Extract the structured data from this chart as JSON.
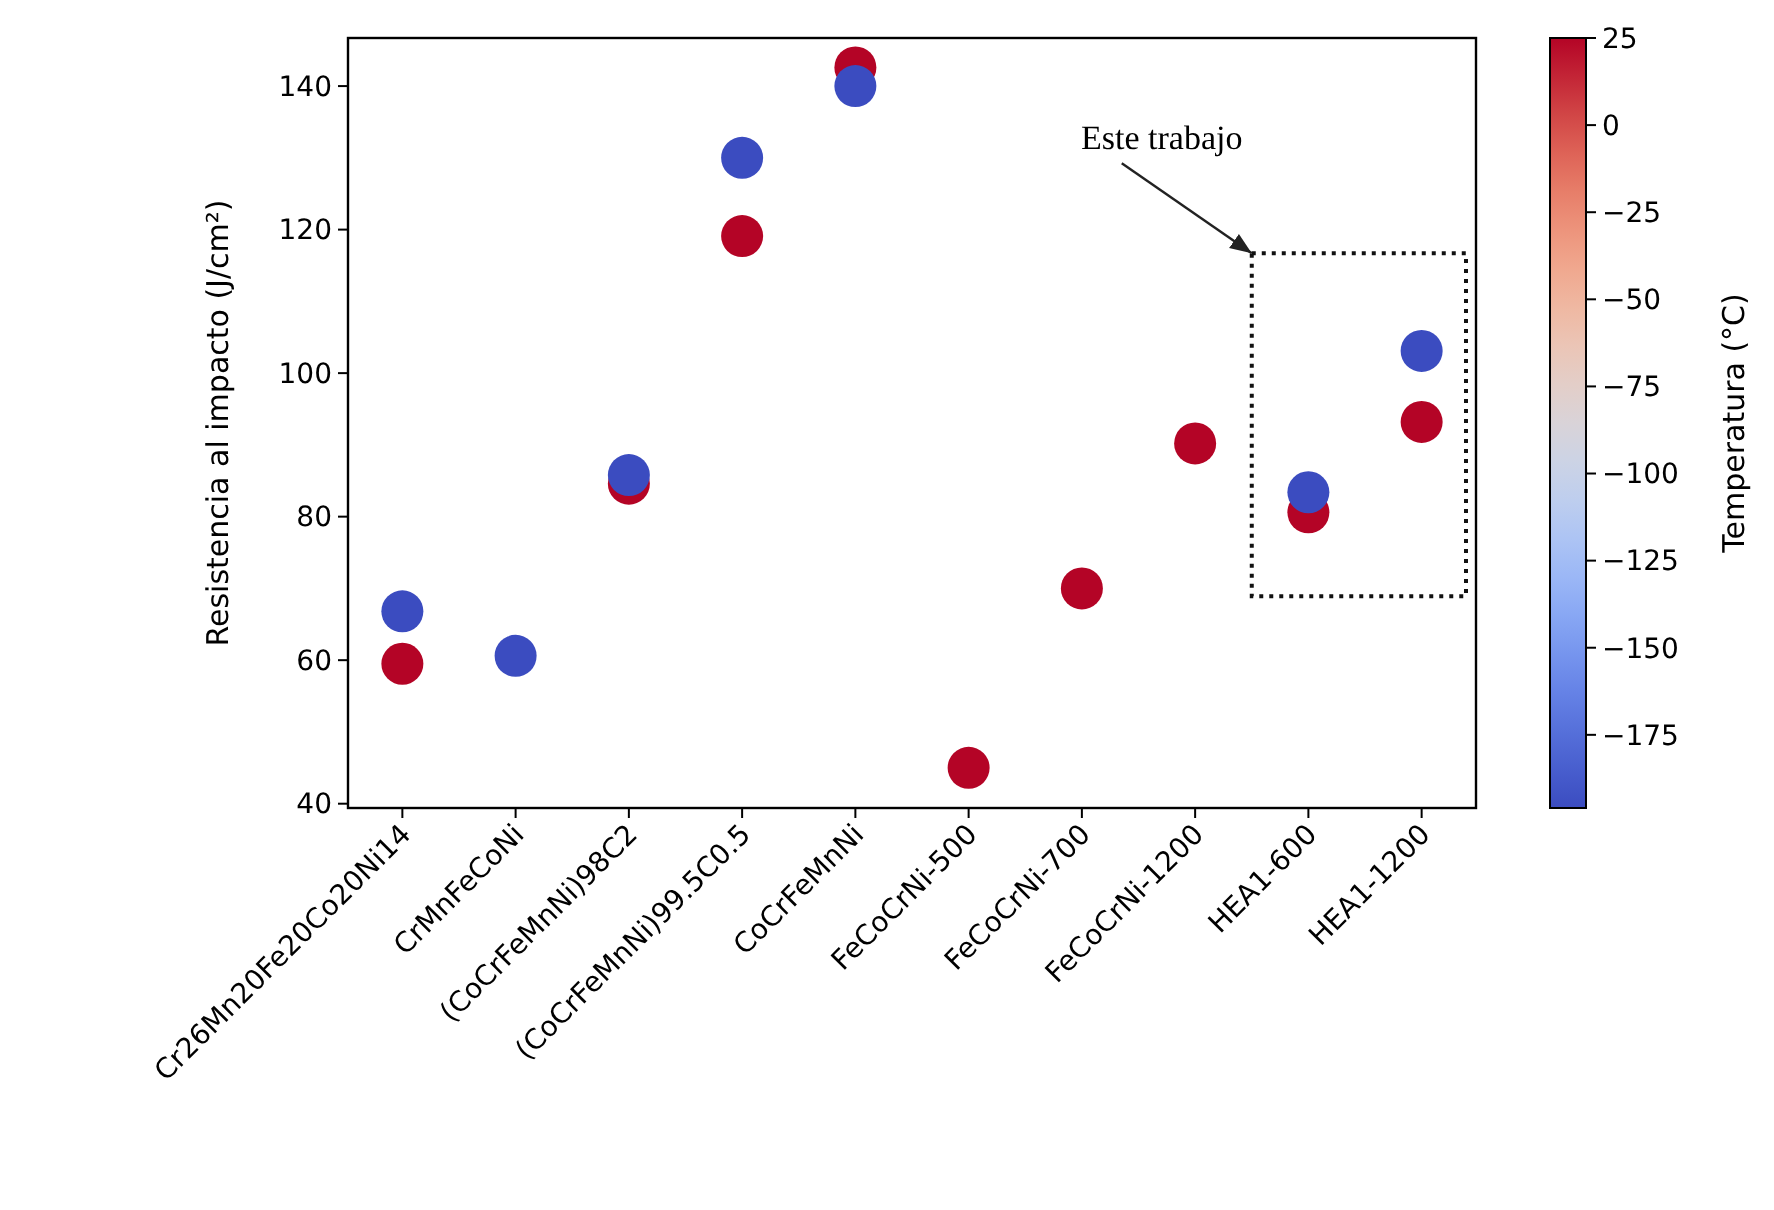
{
  "chart_data": {
    "type": "scatter",
    "ylabel": "Resistencia al impacto (J/cm²)",
    "clabel": "Temperatura (°C)",
    "categories": [
      "Cr26Mn20Fe20Co20Ni14",
      "CrMnFeCoNi",
      "(CoCrFeMnNi)98C2",
      "(CoCrFeMnNi)99.5C0.5",
      "CoCrFeMnNi",
      "FeCoCrNi-500",
      "FeCoCrNi-700",
      "FeCoCrNi-1200",
      "HEA1-600",
      "HEA1-1200"
    ],
    "series": [
      {
        "values": [
          59.5,
          null,
          84.6,
          119.1,
          142.6,
          45,
          70,
          90.2,
          80.6,
          93.2
        ],
        "cvalues": [
          25,
          null,
          25,
          25,
          25,
          25,
          25,
          25,
          25,
          25
        ]
      },
      {
        "values": [
          66.8,
          60.6,
          85.8,
          130,
          140,
          null,
          null,
          null,
          83.4,
          103.1
        ],
        "cvalues": [
          -196,
          -196,
          -196,
          -196,
          -196,
          null,
          null,
          null,
          -196,
          -196
        ]
      }
    ],
    "ylim": [
      39.4,
      146.7
    ],
    "yticks": [
      40,
      60,
      80,
      100,
      120,
      140
    ],
    "clim": [
      -196,
      25
    ],
    "cticks": [
      25,
      0,
      -25,
      -50,
      -75,
      -100,
      -125,
      -150,
      -175
    ],
    "marker": "circle",
    "grid": false,
    "annotations": [
      "Este trabajo"
    ]
  }
}
